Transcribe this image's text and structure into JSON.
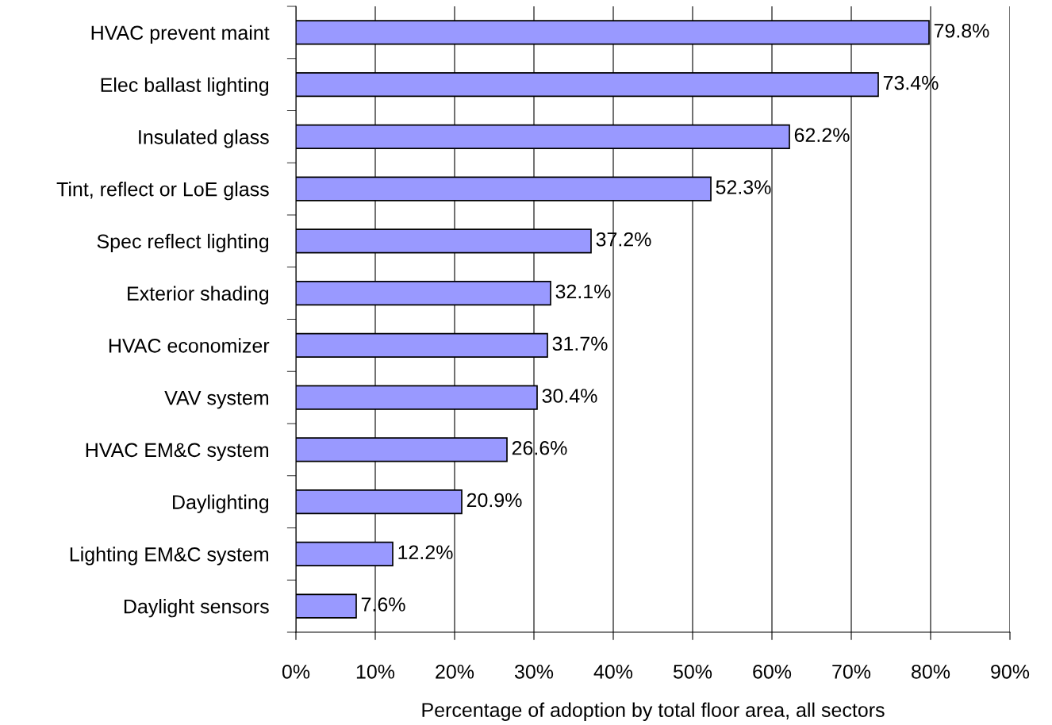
{
  "chart_data": {
    "type": "bar",
    "orientation": "horizontal",
    "xlabel": "Percentage of adoption by total floor area, all sectors",
    "categories": [
      "HVAC prevent maint",
      "Elec ballast lighting",
      "Insulated glass",
      "Tint, reflect or LoE glass",
      "Spec reflect lighting",
      "Exterior shading",
      "HVAC economizer",
      "VAV system",
      "HVAC EM&C system",
      "Daylighting",
      "Lighting EM&C system",
      "Daylight sensors"
    ],
    "values": [
      79.8,
      73.4,
      62.2,
      52.3,
      37.2,
      32.1,
      31.7,
      30.4,
      26.6,
      20.9,
      12.2,
      7.6
    ],
    "value_labels": [
      "79.8%",
      "73.4%",
      "62.2%",
      "52.3%",
      "37.2%",
      "32.1%",
      "31.7%",
      "30.4%",
      "26.6%",
      "20.9%",
      "12.2%",
      "7.6%"
    ],
    "color": "#9999ff",
    "xlim": [
      0,
      90
    ],
    "xticks": [
      {
        "value": 0,
        "label": "0%"
      },
      {
        "value": 10,
        "label": "10%"
      },
      {
        "value": 20,
        "label": "20%"
      },
      {
        "value": 30,
        "label": "30%"
      },
      {
        "value": 40,
        "label": "40%"
      },
      {
        "value": 50,
        "label": "50%"
      },
      {
        "value": 60,
        "label": "60%"
      },
      {
        "value": 70,
        "label": "70%"
      },
      {
        "value": 80,
        "label": "80%"
      },
      {
        "value": 90,
        "label": "90%"
      }
    ],
    "grid": "x",
    "legend": false
  }
}
